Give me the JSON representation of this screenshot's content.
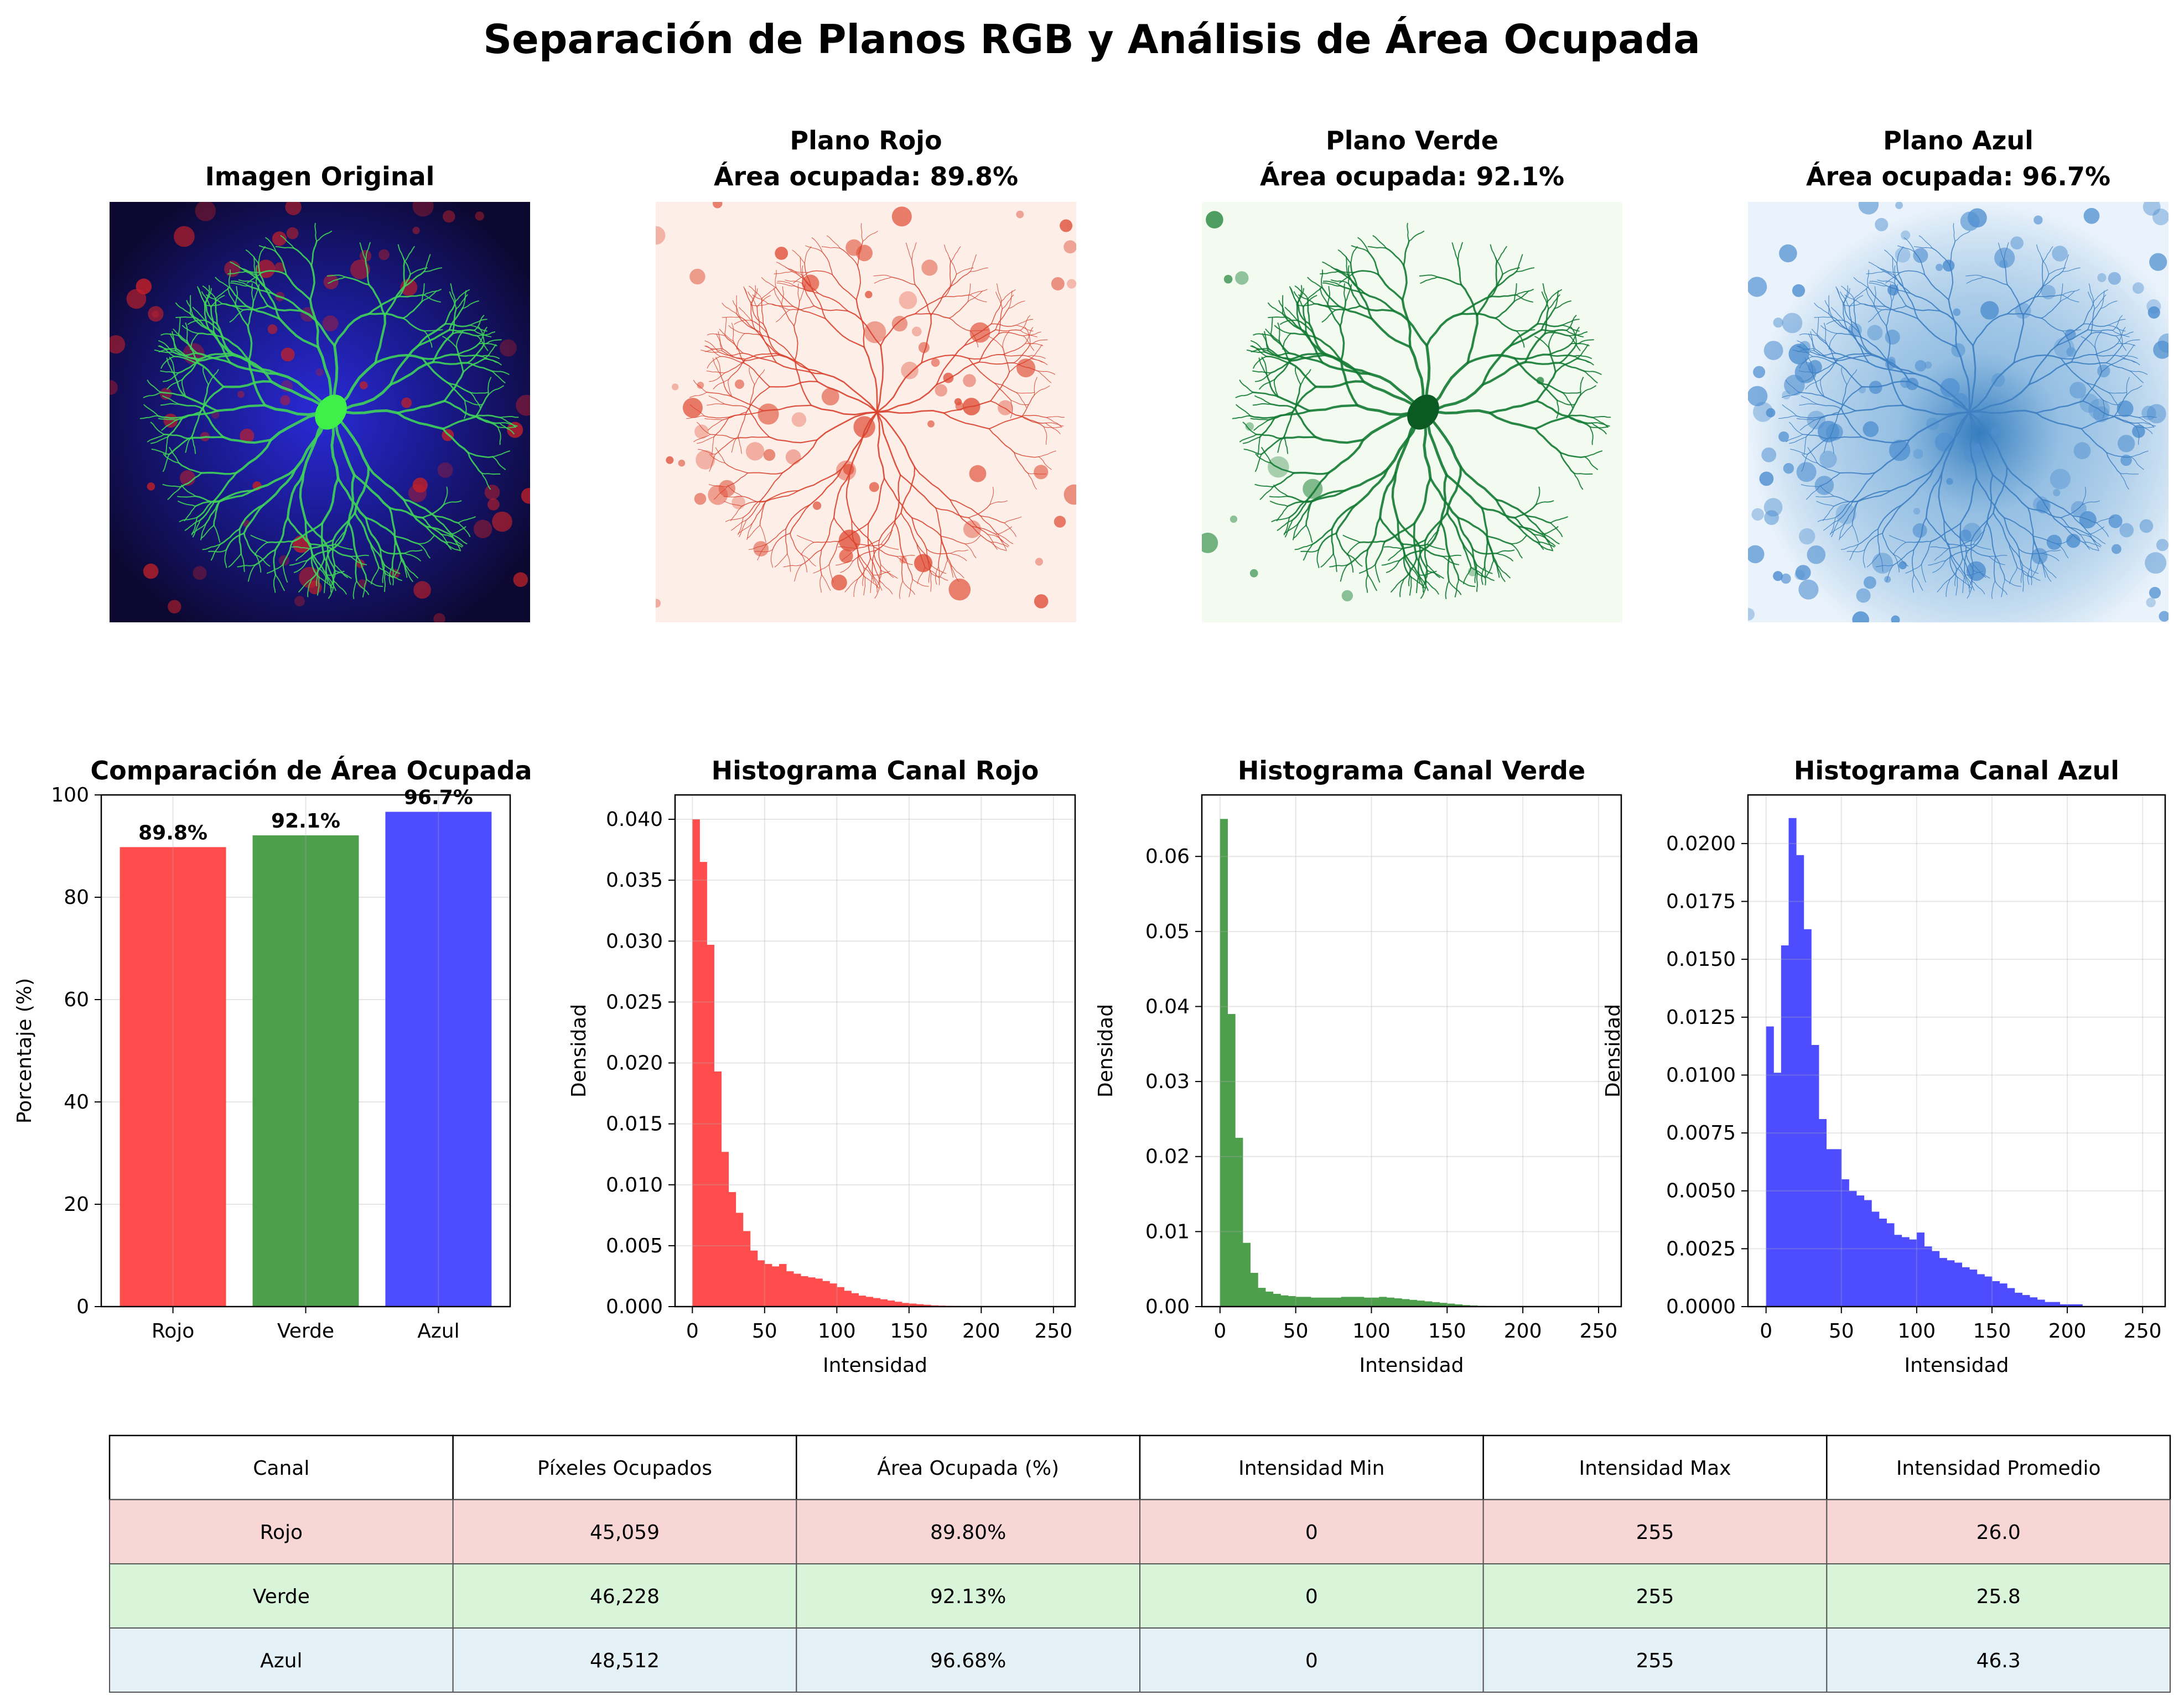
{
  "figure": {
    "title": "Separación de Planos RGB y Análisis de Área Ocupada"
  },
  "panels": {
    "original": {
      "title": "Imagen Original"
    },
    "red_plane": {
      "title_line1": "Plano Rojo",
      "title_line2": "Área ocupada: 89.8%"
    },
    "green_plane": {
      "title_line1": "Plano Verde",
      "title_line2": "Área ocupada: 92.1%"
    },
    "blue_plane": {
      "title_line1": "Plano Azul",
      "title_line2": "Área ocupada: 96.7%"
    }
  },
  "colors": {
    "red": "#ff4d4d",
    "green": "#4d9e4d",
    "blue": "#4d4dff",
    "row_red": "#f9d6d6",
    "row_green": "#d9f5d9",
    "row_blue": "#e3f1f6"
  },
  "chart_data": [
    {
      "type": "bar",
      "title": "Comparación de Área Ocupada",
      "xlabel": "",
      "ylabel": "Porcentaje (%)",
      "categories": [
        "Rojo",
        "Verde",
        "Azul"
      ],
      "values": [
        89.8,
        92.1,
        96.7
      ],
      "value_labels": [
        "89.8%",
        "92.1%",
        "96.7%"
      ],
      "bar_colors": [
        "#ff4d4d",
        "#4d9e4d",
        "#4d4dff"
      ],
      "ylim": [
        0,
        100
      ],
      "yticks": [
        0,
        20,
        40,
        60,
        80,
        100
      ],
      "grid": true
    },
    {
      "type": "bar",
      "subtype": "histogram",
      "title": "Histograma Canal Rojo",
      "xlabel": "Intensidad",
      "ylabel": "Densidad",
      "color": "#ff4d4d",
      "bin_width": 5,
      "x_start": 0,
      "values": [
        0.04,
        0.0365,
        0.0297,
        0.0193,
        0.0127,
        0.0094,
        0.0077,
        0.0062,
        0.0046,
        0.0038,
        0.0035,
        0.0033,
        0.0035,
        0.0029,
        0.0027,
        0.0025,
        0.0024,
        0.0023,
        0.0021,
        0.0019,
        0.0016,
        0.0013,
        0.0011,
        0.0009,
        0.0008,
        0.0007,
        0.0006,
        0.0005,
        0.0004,
        0.0003,
        0.00025,
        0.0002,
        0.00015,
        0.0001,
        8e-05,
        6e-05,
        5e-05,
        4e-05,
        3e-05,
        2e-05
      ],
      "xlim": [
        -12,
        265
      ],
      "ylim": [
        0,
        0.042
      ],
      "xticks": [
        0,
        50,
        100,
        150,
        200,
        250
      ],
      "yticks": [
        0.0,
        0.005,
        0.01,
        0.015,
        0.02,
        0.025,
        0.03,
        0.035,
        0.04
      ],
      "ytick_labels": [
        "0.000",
        "0.005",
        "0.010",
        "0.015",
        "0.020",
        "0.025",
        "0.030",
        "0.035",
        "0.040"
      ],
      "grid": true
    },
    {
      "type": "bar",
      "subtype": "histogram",
      "title": "Histograma Canal Verde",
      "xlabel": "Intensidad",
      "ylabel": "Densidad",
      "color": "#4d9e4d",
      "bin_width": 5,
      "x_start": 0,
      "values": [
        0.065,
        0.039,
        0.0225,
        0.0085,
        0.0045,
        0.0025,
        0.002,
        0.0017,
        0.0015,
        0.0014,
        0.0013,
        0.0013,
        0.0012,
        0.0012,
        0.0012,
        0.0012,
        0.0013,
        0.0013,
        0.0013,
        0.0012,
        0.0012,
        0.0013,
        0.0012,
        0.0011,
        0.001,
        0.0009,
        0.0008,
        0.0007,
        0.0006,
        0.0005,
        0.0004,
        0.0003,
        0.0002,
        0.00015,
        0.0001,
        8e-05,
        6e-05,
        4e-05,
        3e-05,
        2e-05
      ],
      "xlim": [
        -12,
        265
      ],
      "ylim": [
        0,
        0.0682
      ],
      "xticks": [
        0,
        50,
        100,
        150,
        200,
        250
      ],
      "yticks": [
        0.0,
        0.01,
        0.02,
        0.03,
        0.04,
        0.05,
        0.06
      ],
      "ytick_labels": [
        "0.00",
        "0.01",
        "0.02",
        "0.03",
        "0.04",
        "0.05",
        "0.06"
      ],
      "grid": true
    },
    {
      "type": "bar",
      "subtype": "histogram",
      "title": "Histograma Canal Azul",
      "xlabel": "Intensidad",
      "ylabel": "Densidad",
      "color": "#4d4dff",
      "bin_width": 5,
      "x_start": 0,
      "values": [
        0.0121,
        0.0101,
        0.0156,
        0.0211,
        0.0195,
        0.0163,
        0.0113,
        0.0081,
        0.0068,
        0.0068,
        0.0055,
        0.005,
        0.0048,
        0.0046,
        0.0041,
        0.0038,
        0.0036,
        0.0031,
        0.003,
        0.0029,
        0.0032,
        0.0026,
        0.0024,
        0.0021,
        0.002,
        0.0019,
        0.0017,
        0.0016,
        0.0014,
        0.0013,
        0.0011,
        0.001,
        0.0008,
        0.0006,
        0.0005,
        0.0004,
        0.0003,
        0.0002,
        0.0002,
        0.0001,
        0.0001,
        0.0001
      ],
      "xlim": [
        -12,
        265
      ],
      "ylim": [
        0,
        0.0221
      ],
      "xticks": [
        0,
        50,
        100,
        150,
        200,
        250
      ],
      "yticks": [
        0.0,
        0.0025,
        0.005,
        0.0075,
        0.01,
        0.0125,
        0.015,
        0.0175,
        0.02
      ],
      "ytick_labels": [
        "0.0000",
        "0.0025",
        "0.0050",
        "0.0075",
        "0.0100",
        "0.0125",
        "0.0150",
        "0.0175",
        "0.0200"
      ],
      "grid": true
    },
    {
      "type": "table",
      "columns": [
        "Canal",
        "Píxeles Ocupados",
        "Área Ocupada (%)",
        "Intensidad Min",
        "Intensidad Max",
        "Intensidad Promedio"
      ],
      "rows": [
        [
          "Rojo",
          "45,059",
          "89.80%",
          "0",
          "255",
          "26.0"
        ],
        [
          "Verde",
          "46,228",
          "92.13%",
          "0",
          "255",
          "25.8"
        ],
        [
          "Azul",
          "48,512",
          "96.68%",
          "0",
          "255",
          "46.3"
        ]
      ]
    }
  ]
}
